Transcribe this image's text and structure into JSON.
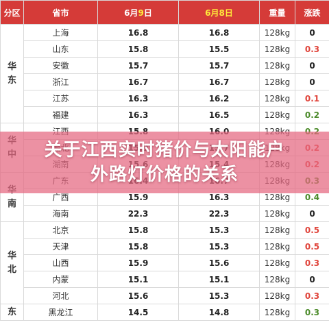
{
  "header": {
    "region": "分区",
    "province": "省市",
    "date1_pre": "6月",
    "date1_day": "9",
    "date1_post": "日",
    "date2": "6月8日",
    "weight": "重量",
    "change": "涨跌"
  },
  "colors": {
    "header_bg": "#d53b38",
    "highlight": "#ffeb3b",
    "up": "#e0443b",
    "down": "#4c8b2b",
    "flat": "#222222",
    "banner": "#e46680"
  },
  "groups": [
    {
      "region": [
        "华",
        "东"
      ],
      "rows": [
        {
          "province": "上海",
          "p1": "16.8",
          "p1c": "black",
          "p2": "16.8",
          "p2c": "black",
          "weight": "128kg",
          "change": "0",
          "cc": "black"
        },
        {
          "province": "山东",
          "p1": "15.8",
          "p1c": "red",
          "p2": "15.5",
          "p2c": "black",
          "weight": "128kg",
          "change": "0.3",
          "cc": "red"
        },
        {
          "province": "安徽",
          "p1": "15.7",
          "p1c": "black",
          "p2": "15.7",
          "p2c": "black",
          "weight": "128kg",
          "change": "0",
          "cc": "black"
        },
        {
          "province": "浙江",
          "p1": "16.7",
          "p1c": "black",
          "p2": "16.7",
          "p2c": "green",
          "weight": "128kg",
          "change": "0",
          "cc": "black"
        },
        {
          "province": "江苏",
          "p1": "16.3",
          "p1c": "red",
          "p2": "16.2",
          "p2c": "black",
          "weight": "128kg",
          "change": "0.1",
          "cc": "red"
        },
        {
          "province": "福建",
          "p1": "16.3",
          "p1c": "green",
          "p2": "16.5",
          "p2c": "green",
          "weight": "128kg",
          "change": "0.2",
          "cc": "green"
        }
      ]
    },
    {
      "region": [
        "华",
        "中"
      ],
      "rows": [
        {
          "province": "江西",
          "p1": "15.8",
          "p1c": "green",
          "p2": "16.0",
          "p2c": "green",
          "weight": "128kg",
          "change": "0.2",
          "cc": "green"
        },
        {
          "province": "湖北",
          "p1": "15.9",
          "p1c": "red",
          "p2": "15.7",
          "p2c": "black",
          "weight": "128kg",
          "change": "0.2",
          "cc": "red"
        },
        {
          "province": "湖南",
          "p1": "15.6",
          "p1c": "black",
          "p2": "15.4",
          "p2c": "black",
          "weight": "128kg",
          "change": "0.2",
          "cc": "red"
        }
      ]
    },
    {
      "region": [
        "华",
        "南"
      ],
      "rows": [
        {
          "province": "广东",
          "p1": "16.4",
          "p1c": "black",
          "p2": "16.7",
          "p2c": "black",
          "weight": "128kg",
          "change": "0.3",
          "cc": "green"
        },
        {
          "province": "广西",
          "p1": "15.9",
          "p1c": "green",
          "p2": "16.3",
          "p2c": "green",
          "weight": "128kg",
          "change": "0.4",
          "cc": "green"
        },
        {
          "province": "海南",
          "p1": "22.3",
          "p1c": "black",
          "p2": "22.3",
          "p2c": "red",
          "weight": "128kg",
          "change": "0",
          "cc": "black"
        }
      ]
    },
    {
      "region": [
        "华",
        "北"
      ],
      "rows": [
        {
          "province": "北京",
          "p1": "15.8",
          "p1c": "red",
          "p2": "15.3",
          "p2c": "red",
          "weight": "128kg",
          "change": "0.5",
          "cc": "red"
        },
        {
          "province": "天津",
          "p1": "15.8",
          "p1c": "red",
          "p2": "15.3",
          "p2c": "red",
          "weight": "128kg",
          "change": "0.5",
          "cc": "red"
        },
        {
          "province": "山西",
          "p1": "15.9",
          "p1c": "red",
          "p2": "15.6",
          "p2c": "red",
          "weight": "128kg",
          "change": "0.3",
          "cc": "red"
        },
        {
          "province": "内蒙",
          "p1": "15.1",
          "p1c": "black",
          "p2": "15.1",
          "p2c": "black",
          "weight": "128kg",
          "change": "0",
          "cc": "black"
        },
        {
          "province": "河北",
          "p1": "15.6",
          "p1c": "red",
          "p2": "15.3",
          "p2c": "red",
          "weight": "128kg",
          "change": "0.3",
          "cc": "red"
        }
      ]
    },
    {
      "region": [
        "东"
      ],
      "rows": [
        {
          "province": "黑龙江",
          "p1": "14.5",
          "p1c": "green",
          "p2": "14.8",
          "p2c": "red",
          "weight": "128kg",
          "change": "0.3",
          "cc": "green"
        }
      ]
    }
  ],
  "banner": {
    "line1": "关于江西实时猪价与太阳能户",
    "line2": "外路灯价格的关系"
  }
}
